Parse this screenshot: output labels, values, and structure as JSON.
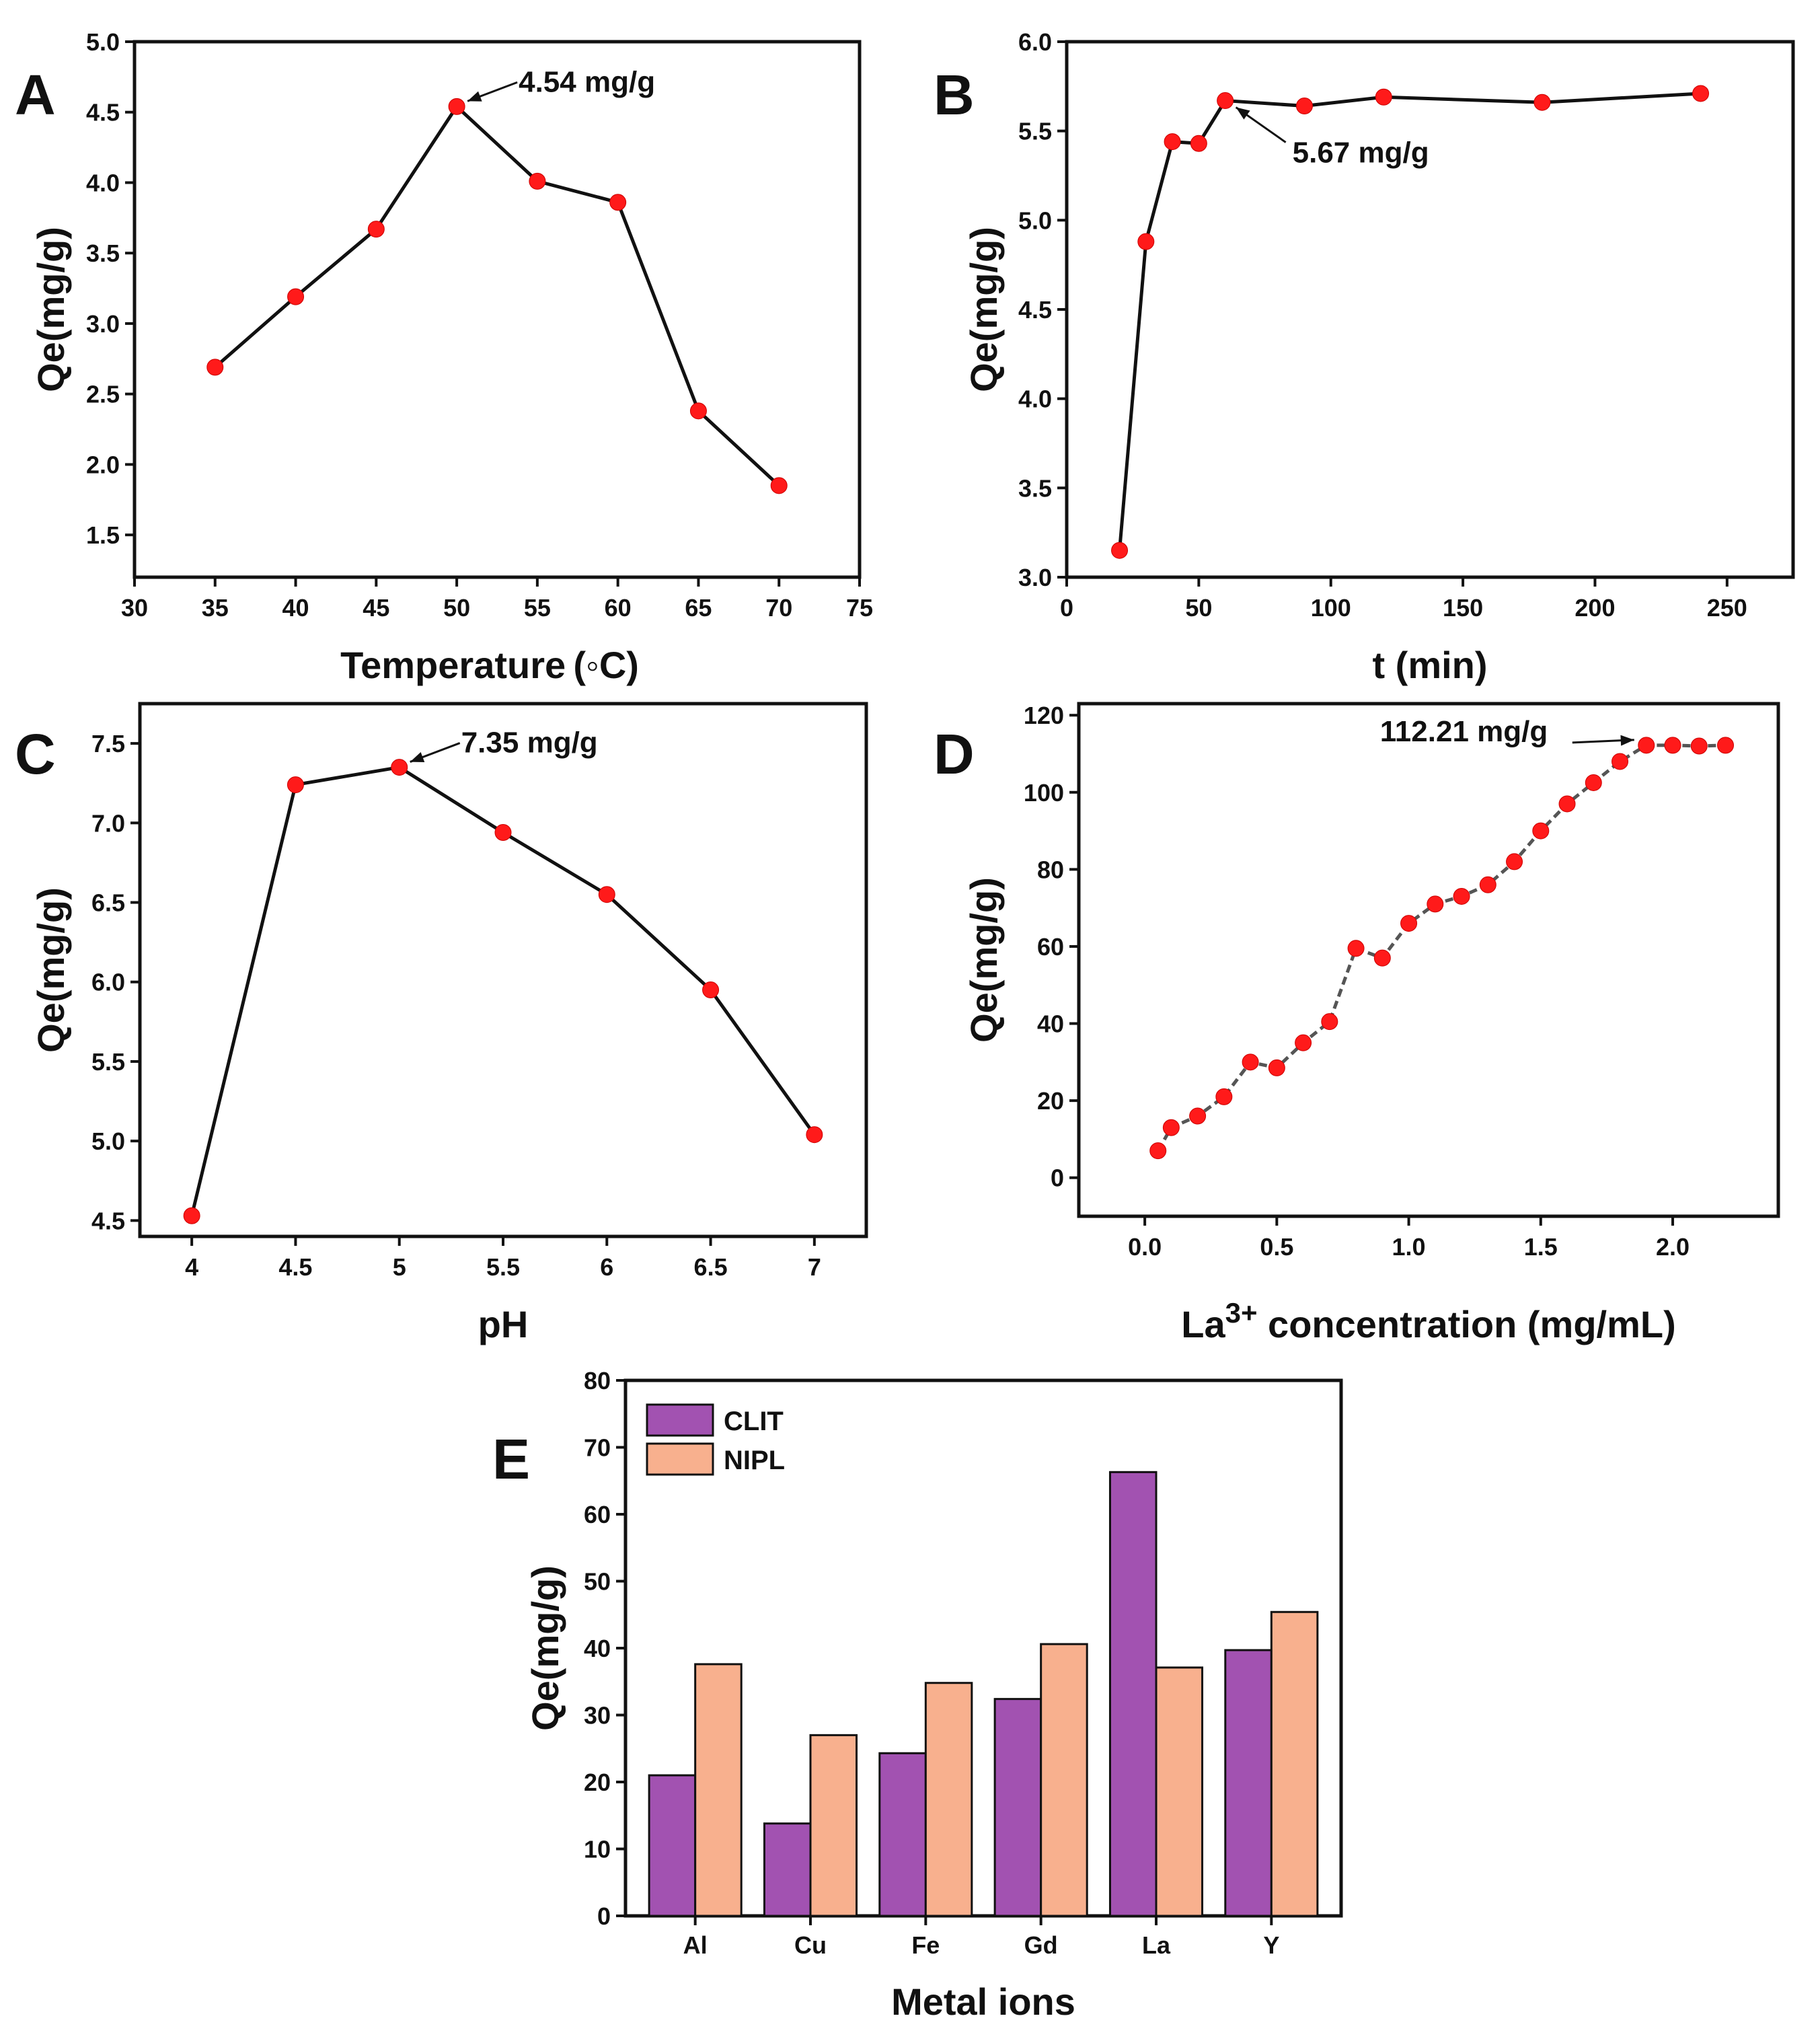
{
  "colors": {
    "marker": "#ff1a1a",
    "line": "#111111",
    "line_dashed": "#555555",
    "clit": "#a252b1",
    "nipl": "#f8b08e",
    "bar_edge": "#111111"
  },
  "chart_data": [
    {
      "panel": "A",
      "type": "line",
      "xlabel": "Temperature (◦C)",
      "ylabel": "Qe(mg/g)",
      "x": [
        35,
        40,
        45,
        50,
        55,
        60,
        65,
        70
      ],
      "y": [
        2.69,
        3.19,
        3.67,
        4.54,
        4.01,
        3.86,
        2.38,
        1.85
      ],
      "xlim": [
        30,
        75
      ],
      "ylim": [
        1.2,
        5.0
      ],
      "xticks": [
        30,
        35,
        40,
        45,
        50,
        55,
        60,
        65,
        70,
        75
      ],
      "yticks": [
        1.5,
        2.0,
        2.5,
        3.0,
        3.5,
        4.0,
        4.5,
        5.0
      ],
      "ytick_decimals": 1,
      "line_style": "solid",
      "annotation": {
        "text": "4.54 mg/g",
        "x": 50,
        "y": 4.54
      }
    },
    {
      "panel": "B",
      "type": "line",
      "xlabel": "t (min)",
      "ylabel": "Qe(mg/g)",
      "x": [
        20,
        30,
        40,
        50,
        60,
        90,
        120,
        180,
        240
      ],
      "y": [
        3.15,
        4.88,
        5.44,
        5.43,
        5.67,
        5.64,
        5.69,
        5.66,
        5.71
      ],
      "xlim": [
        0,
        275
      ],
      "ylim": [
        3.0,
        6.0
      ],
      "xticks": [
        0,
        50,
        100,
        150,
        200,
        250
      ],
      "yticks": [
        3.0,
        3.5,
        4.0,
        4.5,
        5.0,
        5.5,
        6.0
      ],
      "ytick_decimals": 1,
      "line_style": "solid",
      "annotation": {
        "text": "5.67 mg/g",
        "x": 60,
        "y": 5.67
      }
    },
    {
      "panel": "C",
      "type": "line",
      "xlabel": "pH",
      "ylabel": "Qe(mg/g)",
      "x": [
        4.0,
        4.5,
        5.0,
        5.5,
        6.0,
        6.5,
        7.0
      ],
      "y": [
        4.53,
        7.24,
        7.35,
        6.94,
        6.55,
        5.95,
        5.04
      ],
      "xlim": [
        3.75,
        7.25
      ],
      "ylim": [
        4.4,
        7.75
      ],
      "xticks": [
        4.0,
        4.5,
        5.0,
        5.5,
        6.0,
        6.5,
        7.0
      ],
      "yticks": [
        4.5,
        5.0,
        5.5,
        6.0,
        6.5,
        7.0,
        7.5
      ],
      "ytick_decimals": 1,
      "line_style": "solid",
      "annotation": {
        "text": "7.35 mg/g",
        "x": 5.0,
        "y": 7.35
      }
    },
    {
      "panel": "D",
      "type": "line",
      "xlabel": "La",
      "xlabel_sup": "3+",
      "xlabel_rest": " concentration (mg/mL)",
      "ylabel": "Qe(mg/g)",
      "x": [
        0.05,
        0.1,
        0.2,
        0.3,
        0.4,
        0.5,
        0.6,
        0.7,
        0.8,
        0.9,
        1.0,
        1.1,
        1.2,
        1.3,
        1.4,
        1.5,
        1.6,
        1.7,
        1.8,
        1.9,
        2.0,
        2.1,
        2.2
      ],
      "y": [
        7,
        13,
        16,
        21,
        30,
        28.5,
        35,
        40.5,
        59.5,
        57,
        66,
        71,
        73,
        76,
        82,
        90,
        97,
        102.5,
        108,
        112.21,
        112.2,
        112,
        112.2
      ],
      "xlim": [
        -0.25,
        2.4
      ],
      "ylim": [
        -10,
        123
      ],
      "xticks": [
        0.0,
        0.5,
        1.0,
        1.5,
        2.0
      ],
      "xtick_decimals": 1,
      "yticks": [
        0,
        20,
        40,
        60,
        80,
        100,
        120
      ],
      "ytick_decimals": 0,
      "line_style": "dashed",
      "annotation": {
        "text": "112.21 mg/g",
        "x": 1.9,
        "y": 112.21
      }
    },
    {
      "panel": "E",
      "type": "bar",
      "xlabel": "Metal ions",
      "ylabel": "Qe(mg/g)",
      "categories": [
        "Al",
        "Cu",
        "Fe",
        "Gd",
        "La",
        "Y"
      ],
      "series": [
        {
          "name": "CLIT",
          "values": [
            21.0,
            13.8,
            24.3,
            32.4,
            66.3,
            39.7
          ]
        },
        {
          "name": "NIPL",
          "values": [
            37.6,
            27.0,
            34.8,
            40.6,
            37.1,
            45.4
          ]
        }
      ],
      "ylim": [
        0,
        80
      ],
      "yticks": [
        0,
        10,
        20,
        30,
        40,
        50,
        60,
        70,
        80
      ],
      "ytick_decimals": 0,
      "legend": "top-left"
    }
  ]
}
